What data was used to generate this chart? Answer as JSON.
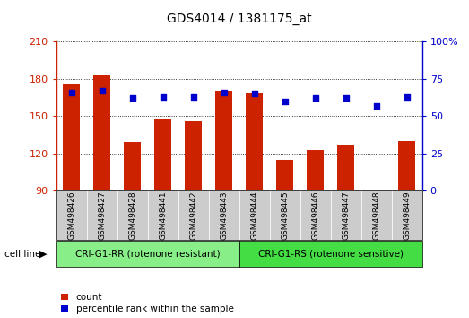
{
  "title": "GDS4014 / 1381175_at",
  "categories": [
    "GSM498426",
    "GSM498427",
    "GSM498428",
    "GSM498441",
    "GSM498442",
    "GSM498443",
    "GSM498444",
    "GSM498445",
    "GSM498446",
    "GSM498447",
    "GSM498448",
    "GSM498449"
  ],
  "bar_values": [
    176,
    183,
    129,
    148,
    146,
    170,
    168,
    115,
    123,
    127,
    91,
    130
  ],
  "dot_values": [
    66,
    67,
    62,
    63,
    63,
    66,
    65,
    60,
    62,
    62,
    57,
    63
  ],
  "ylim_left": [
    90,
    210
  ],
  "ylim_right": [
    0,
    100
  ],
  "yticks_left": [
    90,
    120,
    150,
    180,
    210
  ],
  "yticks_right": [
    0,
    25,
    50,
    75,
    100
  ],
  "bar_color": "#cc2200",
  "dot_color": "#0000cc",
  "group1_label": "CRI-G1-RR (rotenone resistant)",
  "group2_label": "CRI-G1-RS (rotenone sensitive)",
  "group1_color": "#88ee88",
  "group2_color": "#44dd44",
  "cell_line_label": "cell line",
  "legend_count_label": "count",
  "legend_pct_label": "percentile rank within the sample",
  "bar_bottom": 90,
  "tick_bg_color": "#cccccc",
  "plot_bg_color": "#ffffff",
  "fig_bg_color": "#ffffff"
}
